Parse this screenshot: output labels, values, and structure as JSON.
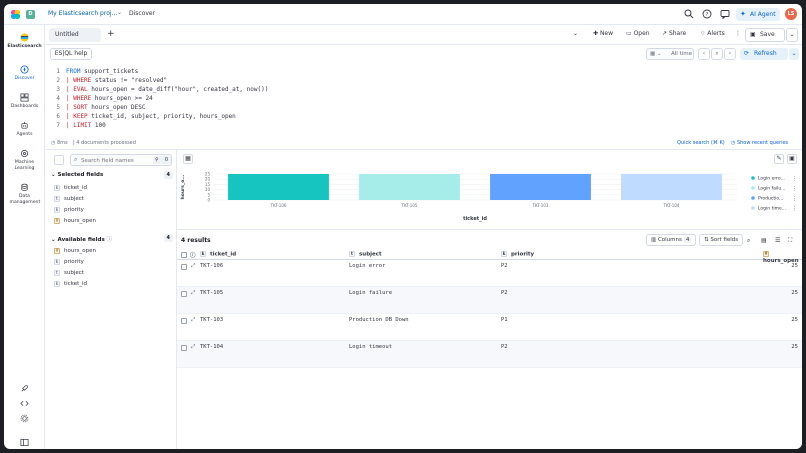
{
  "header": {
    "space_initial": "D",
    "project": "My Elasticsearch proj...",
    "current_app": "Discover",
    "ai_agent_label": "AI Agent",
    "avatar_initials": "LS"
  },
  "nav": {
    "brand": "Elasticsearch",
    "items": [
      {
        "label": "Discover",
        "icon": "compass-icon"
      },
      {
        "label": "Dashboards",
        "icon": "dashboard-icon"
      },
      {
        "label": "Agents",
        "icon": "robot-icon"
      },
      {
        "label": "Machine Learning",
        "icon": "ml-icon"
      },
      {
        "label": "Data management",
        "icon": "database-icon"
      }
    ]
  },
  "appbar": {
    "tab_label": "Untitled",
    "new_label": "New",
    "open_label": "Open",
    "share_label": "Share",
    "alerts_label": "Alerts",
    "save_label": "Save"
  },
  "querybar": {
    "esql_label": "ES|QL help",
    "time_label": "All time",
    "refresh_label": "Refresh"
  },
  "query": {
    "lines": [
      {
        "n": "1",
        "kw": "FROM",
        "rest": " support_tickets"
      },
      {
        "n": "2",
        "kw": "| WHERE",
        "rest": " status != \"resolved\""
      },
      {
        "n": "3",
        "kw": "| EVAL",
        "rest": " hours_open = date_diff(\"hour\", created_at, now())"
      },
      {
        "n": "4",
        "kw": "| WHERE",
        "rest": " hours_open >= 24"
      },
      {
        "n": "5",
        "kw": "| SORT",
        "rest": " hours_open DESC"
      },
      {
        "n": "6",
        "kw": "| KEEP",
        "rest": " ticket_id, subject, priority, hours_open"
      },
      {
        "n": "7",
        "kw": "| LIMIT",
        "rest": " 100"
      }
    ],
    "footer_time": "8ms",
    "footer_docs": "4 documents processed",
    "quick_search": "Quick search (⌘ K)",
    "recent_queries": "Show recent queries"
  },
  "sidebar": {
    "search_placeholder": "Search field names",
    "filter_count": "0",
    "selected_title": "Selected fields",
    "selected_count": "4",
    "selected_fields": [
      {
        "type": "k",
        "name": "ticket_id"
      },
      {
        "type": "t",
        "name": "subject"
      },
      {
        "type": "k",
        "name": "priority"
      },
      {
        "type": "#",
        "name": "hours_open"
      }
    ],
    "available_title": "Available fields",
    "available_count": "4",
    "available_fields": [
      {
        "type": "#",
        "name": "hours_open"
      },
      {
        "type": "k",
        "name": "priority"
      },
      {
        "type": "t",
        "name": "subject"
      },
      {
        "type": "k",
        "name": "ticket_id"
      }
    ]
  },
  "chart_data": {
    "type": "bar",
    "categories": [
      "TKT-106",
      "TKT-105",
      "TKT-103",
      "TKT-104"
    ],
    "values": [
      25,
      25,
      25,
      25
    ],
    "xlabel": "ticket_id",
    "ylabel": "hours_o...",
    "yticks": [
      "25",
      "20",
      "15",
      "10",
      "5",
      "0"
    ],
    "ylim": [
      0,
      25
    ],
    "colors": [
      "#16c5c0",
      "#a6edea",
      "#61a2ff",
      "#bfdbff"
    ],
    "legend": {
      "placement": "right",
      "entries": [
        "Login erro...",
        "Login failu...",
        "Productio...",
        "Login time..."
      ]
    }
  },
  "results": {
    "count_label": "4 results",
    "columns_label": "Columns",
    "columns_count": "4",
    "sort_label": "Sort fields",
    "headers": [
      "ticket_id",
      "subject",
      "priority",
      "hours_open"
    ],
    "rows": [
      {
        "ticket_id": "TKT-106",
        "subject": "Login error",
        "priority": "P2",
        "hours_open": "25"
      },
      {
        "ticket_id": "TKT-105",
        "subject": "Login failure",
        "priority": "P2",
        "hours_open": "25"
      },
      {
        "ticket_id": "TKT-103",
        "subject": "Production DB Down",
        "priority": "P1",
        "hours_open": "25"
      },
      {
        "ticket_id": "TKT-104",
        "subject": "Login timeout",
        "priority": "P2",
        "hours_open": "25"
      }
    ]
  }
}
